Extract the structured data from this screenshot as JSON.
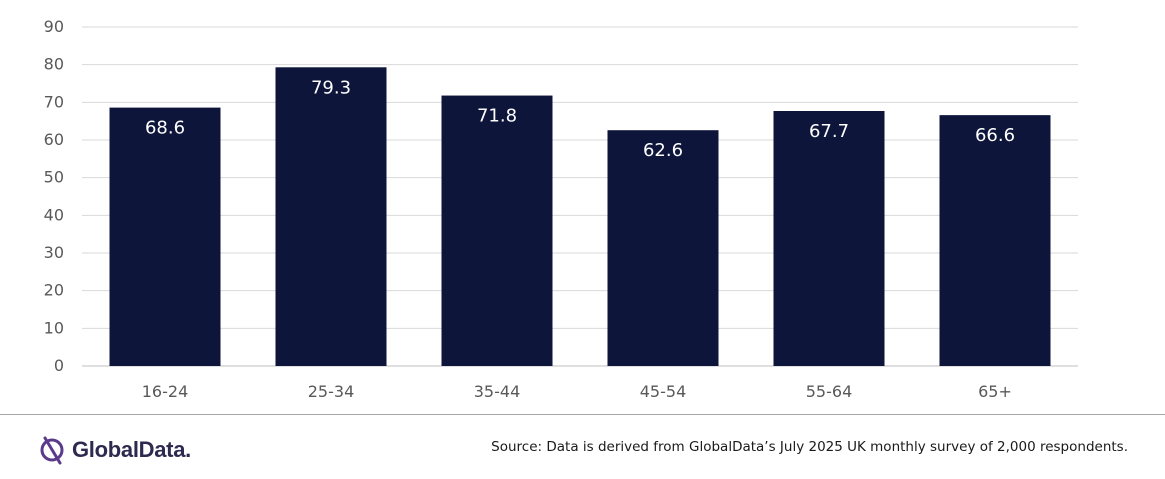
{
  "chart_data": {
    "type": "bar",
    "categories": [
      "16-24",
      "25-34",
      "35-44",
      "45-54",
      "55-64",
      "65+"
    ],
    "values": [
      68.6,
      79.3,
      71.8,
      62.6,
      67.7,
      66.6
    ],
    "data_labels": [
      "68.6",
      "79.3",
      "71.8",
      "62.6",
      "67.7",
      "66.6"
    ],
    "title": "",
    "xlabel": "",
    "ylabel": "",
    "ylim": [
      0,
      90
    ],
    "yticks": [
      0,
      10,
      20,
      30,
      40,
      50,
      60,
      70,
      80,
      90
    ],
    "grid": true,
    "legend": "none",
    "colors": {
      "bar": "#0d153b",
      "label": "#ffffff",
      "grid": "#d9d9d9",
      "axis_text": "#595959"
    }
  },
  "footer": {
    "brand": "GlobalData.",
    "source": "Source: Data is derived from GlobalData’s July 2025 UK monthly survey of 2,000 respondents."
  },
  "icons": {
    "logo": "globaldata-logo-icon"
  }
}
